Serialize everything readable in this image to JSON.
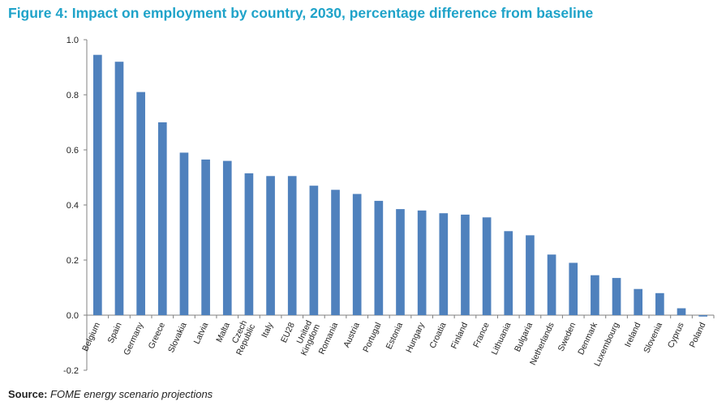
{
  "figure": {
    "title": "Figure 4: Impact on employment by country, 2030, percentage difference from baseline",
    "source_label": "Source:",
    "source_text": "FOME energy scenario projections"
  },
  "chart_data": {
    "type": "bar",
    "categories": [
      "Belgium",
      "Spain",
      "Germany",
      "Greece",
      "Slovakia",
      "Latvia",
      "Malta",
      "Czech Republic",
      "Italy",
      "EU28",
      "United Kingdom",
      "Romania",
      "Austria",
      "Portugal",
      "Estonia",
      "Hungary",
      "Croatia",
      "Finland",
      "France",
      "Lithuania",
      "Bulgaria",
      "Netherlands",
      "Sweden",
      "Denmark",
      "Luxembourg",
      "Ireland",
      "Slovenia",
      "Cyprus",
      "Poland"
    ],
    "values": [
      0.945,
      0.92,
      0.81,
      0.7,
      0.59,
      0.565,
      0.56,
      0.515,
      0.505,
      0.505,
      0.47,
      0.455,
      0.44,
      0.415,
      0.385,
      0.38,
      0.37,
      0.365,
      0.355,
      0.305,
      0.29,
      0.22,
      0.19,
      0.145,
      0.135,
      0.095,
      0.08,
      0.025,
      -0.005
    ],
    "yticks": [
      "1.0",
      "0.8",
      "0.6",
      "0.4",
      "0.2",
      "0.0",
      "-0.2"
    ],
    "ylim": [
      -0.2,
      1.0
    ],
    "grid": false,
    "bar_color": "#4f81bd"
  }
}
